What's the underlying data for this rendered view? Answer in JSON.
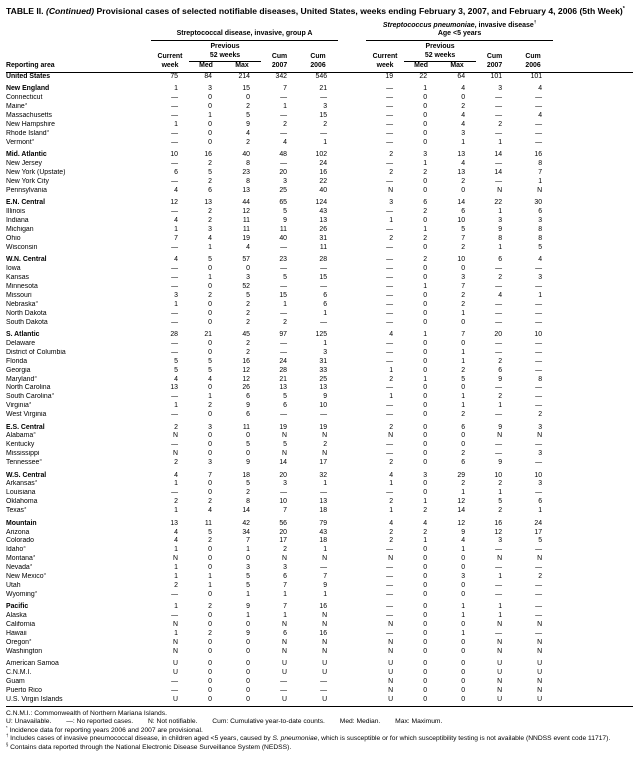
{
  "title": {
    "segments": [
      {
        "text": "TABLE II. "
      },
      {
        "text": "(Continued)",
        "italic": true
      },
      {
        "text": " Provisional cases of selected notifiable diseases, United States, weeks ending February 3, 2007, and February 4, 2006 (5th Week)"
      },
      {
        "text": "*",
        "sup": true
      }
    ]
  },
  "table": {
    "header": {
      "reporting_area_label": "Reporting area",
      "groups": [
        {
          "title_segments": [
            {
              "text": "Streptococcal disease, invasive, group A"
            }
          ],
          "subtitle": ""
        },
        {
          "title_segments": [
            {
              "text": "Streptococcus pneumoniae",
              "italic": true
            },
            {
              "text": ", invasive disease"
            },
            {
              "text": "†",
              "sup": true
            }
          ],
          "subtitle": "Age <5 years"
        }
      ],
      "subcols": {
        "current_l1": "Current",
        "current_l2": "week",
        "previous_l1": "Previous",
        "previous_l2": "52 weeks",
        "med": "Med",
        "max": "Max",
        "cum": "Cum",
        "y2007": "2007",
        "y2006": "2006"
      }
    },
    "rows": [
      {
        "label": "United States",
        "bold": true,
        "values": [
          "75",
          "84",
          "214",
          "342",
          "546",
          "19",
          "22",
          "64",
          "101",
          "101"
        ]
      },
      {
        "label": "New England",
        "bold": true,
        "gap_before": true,
        "values": [
          "1",
          "3",
          "15",
          "7",
          "21",
          "—",
          "1",
          "4",
          "3",
          "4"
        ]
      },
      {
        "label": "Connecticut",
        "values": [
          "—",
          "0",
          "0",
          "—",
          "—",
          "—",
          "0",
          "0",
          "—",
          "—"
        ]
      },
      {
        "label": "Maine",
        "sup": "§",
        "values": [
          "—",
          "0",
          "2",
          "1",
          "3",
          "—",
          "0",
          "2",
          "—",
          "—"
        ]
      },
      {
        "label": "Massachusetts",
        "values": [
          "—",
          "1",
          "5",
          "—",
          "15",
          "—",
          "0",
          "4",
          "—",
          "4"
        ]
      },
      {
        "label": "New Hampshire",
        "values": [
          "1",
          "0",
          "9",
          "2",
          "2",
          "—",
          "0",
          "4",
          "2",
          "—"
        ]
      },
      {
        "label": "Rhode Island",
        "sup": "§",
        "values": [
          "—",
          "0",
          "4",
          "—",
          "—",
          "—",
          "0",
          "3",
          "—",
          "—"
        ]
      },
      {
        "label": "Vermont",
        "sup": "§",
        "values": [
          "—",
          "0",
          "2",
          "4",
          "1",
          "—",
          "0",
          "1",
          "1",
          "—"
        ]
      },
      {
        "label": "Mid. Atlantic",
        "bold": true,
        "gap_before": true,
        "values": [
          "10",
          "16",
          "40",
          "48",
          "102",
          "2",
          "3",
          "13",
          "14",
          "16"
        ]
      },
      {
        "label": "New Jersey",
        "values": [
          "—",
          "2",
          "8",
          "—",
          "24",
          "—",
          "1",
          "4",
          "—",
          "8"
        ]
      },
      {
        "label": "New York (Upstate)",
        "values": [
          "6",
          "5",
          "23",
          "20",
          "16",
          "2",
          "2",
          "13",
          "14",
          "7"
        ]
      },
      {
        "label": "New York City",
        "values": [
          "—",
          "2",
          "8",
          "3",
          "22",
          "—",
          "0",
          "2",
          "—",
          "1"
        ]
      },
      {
        "label": "Pennsylvania",
        "values": [
          "4",
          "6",
          "13",
          "25",
          "40",
          "N",
          "0",
          "0",
          "N",
          "N"
        ]
      },
      {
        "label": "E.N. Central",
        "bold": true,
        "gap_before": true,
        "values": [
          "12",
          "13",
          "44",
          "65",
          "124",
          "3",
          "6",
          "14",
          "22",
          "30"
        ]
      },
      {
        "label": "Illinois",
        "values": [
          "—",
          "2",
          "12",
          "5",
          "43",
          "—",
          "2",
          "6",
          "1",
          "6"
        ]
      },
      {
        "label": "Indiana",
        "values": [
          "4",
          "2",
          "11",
          "9",
          "13",
          "1",
          "0",
          "10",
          "3",
          "3"
        ]
      },
      {
        "label": "Michigan",
        "values": [
          "1",
          "3",
          "11",
          "11",
          "26",
          "—",
          "1",
          "5",
          "9",
          "8"
        ]
      },
      {
        "label": "Ohio",
        "values": [
          "7",
          "4",
          "19",
          "40",
          "31",
          "2",
          "2",
          "7",
          "8",
          "8"
        ]
      },
      {
        "label": "Wisconsin",
        "values": [
          "—",
          "1",
          "4",
          "—",
          "11",
          "—",
          "0",
          "2",
          "1",
          "5"
        ]
      },
      {
        "label": "W.N. Central",
        "bold": true,
        "gap_before": true,
        "values": [
          "4",
          "5",
          "57",
          "23",
          "28",
          "—",
          "2",
          "10",
          "6",
          "4"
        ]
      },
      {
        "label": "Iowa",
        "values": [
          "—",
          "0",
          "0",
          "—",
          "—",
          "—",
          "0",
          "0",
          "—",
          "—"
        ]
      },
      {
        "label": "Kansas",
        "values": [
          "—",
          "1",
          "3",
          "5",
          "15",
          "—",
          "0",
          "3",
          "2",
          "3"
        ]
      },
      {
        "label": "Minnesota",
        "values": [
          "—",
          "0",
          "52",
          "—",
          "—",
          "—",
          "1",
          "7",
          "—",
          "—"
        ]
      },
      {
        "label": "Missouri",
        "values": [
          "3",
          "2",
          "5",
          "15",
          "6",
          "—",
          "0",
          "2",
          "4",
          "1"
        ]
      },
      {
        "label": "Nebraska",
        "sup": "§",
        "values": [
          "1",
          "0",
          "2",
          "1",
          "6",
          "—",
          "0",
          "2",
          "—",
          "—"
        ]
      },
      {
        "label": "North Dakota",
        "values": [
          "—",
          "0",
          "2",
          "—",
          "1",
          "—",
          "0",
          "1",
          "—",
          "—"
        ]
      },
      {
        "label": "South Dakota",
        "values": [
          "—",
          "0",
          "2",
          "2",
          "—",
          "—",
          "0",
          "0",
          "—",
          "—"
        ]
      },
      {
        "label": "S. Atlantic",
        "bold": true,
        "gap_before": true,
        "values": [
          "28",
          "21",
          "45",
          "97",
          "125",
          "4",
          "1",
          "7",
          "20",
          "10"
        ]
      },
      {
        "label": "Delaware",
        "values": [
          "—",
          "0",
          "2",
          "—",
          "1",
          "—",
          "0",
          "0",
          "—",
          "—"
        ]
      },
      {
        "label": "District of Columbia",
        "values": [
          "—",
          "0",
          "2",
          "—",
          "3",
          "—",
          "0",
          "1",
          "—",
          "—"
        ]
      },
      {
        "label": "Florida",
        "values": [
          "5",
          "5",
          "16",
          "24",
          "31",
          "—",
          "0",
          "1",
          "2",
          "—"
        ]
      },
      {
        "label": "Georgia",
        "values": [
          "5",
          "5",
          "12",
          "28",
          "33",
          "1",
          "0",
          "2",
          "6",
          "—"
        ]
      },
      {
        "label": "Maryland",
        "sup": "§",
        "values": [
          "4",
          "4",
          "12",
          "21",
          "25",
          "2",
          "1",
          "5",
          "9",
          "8"
        ]
      },
      {
        "label": "North Carolina",
        "values": [
          "13",
          "0",
          "26",
          "13",
          "13",
          "—",
          "0",
          "0",
          "—",
          "—"
        ]
      },
      {
        "label": "South Carolina",
        "sup": "§",
        "values": [
          "—",
          "1",
          "6",
          "5",
          "9",
          "1",
          "0",
          "1",
          "2",
          "—"
        ]
      },
      {
        "label": "Virginia",
        "sup": "§",
        "values": [
          "1",
          "2",
          "9",
          "6",
          "10",
          "—",
          "0",
          "1",
          "1",
          "—"
        ]
      },
      {
        "label": "West Virginia",
        "values": [
          "—",
          "0",
          "6",
          "—",
          "—",
          "—",
          "0",
          "2",
          "—",
          "2"
        ]
      },
      {
        "label": "E.S. Central",
        "bold": true,
        "gap_before": true,
        "values": [
          "2",
          "3",
          "11",
          "19",
          "19",
          "2",
          "0",
          "6",
          "9",
          "3"
        ]
      },
      {
        "label": "Alabama",
        "sup": "§",
        "values": [
          "N",
          "0",
          "0",
          "N",
          "N",
          "N",
          "0",
          "0",
          "N",
          "N"
        ]
      },
      {
        "label": "Kentucky",
        "values": [
          "—",
          "0",
          "5",
          "5",
          "2",
          "—",
          "0",
          "0",
          "—",
          "—"
        ]
      },
      {
        "label": "Mississippi",
        "values": [
          "N",
          "0",
          "0",
          "N",
          "N",
          "—",
          "0",
          "2",
          "—",
          "3"
        ]
      },
      {
        "label": "Tennessee",
        "sup": "§",
        "values": [
          "2",
          "3",
          "9",
          "14",
          "17",
          "2",
          "0",
          "6",
          "9",
          "—"
        ]
      },
      {
        "label": "W.S. Central",
        "bold": true,
        "gap_before": true,
        "values": [
          "4",
          "7",
          "18",
          "20",
          "32",
          "4",
          "3",
          "29",
          "10",
          "10"
        ]
      },
      {
        "label": "Arkansas",
        "sup": "§",
        "values": [
          "1",
          "0",
          "5",
          "3",
          "1",
          "1",
          "0",
          "2",
          "2",
          "3"
        ]
      },
      {
        "label": "Louisiana",
        "values": [
          "—",
          "0",
          "2",
          "—",
          "—",
          "—",
          "0",
          "1",
          "1",
          "—"
        ]
      },
      {
        "label": "Oklahoma",
        "values": [
          "2",
          "2",
          "8",
          "10",
          "13",
          "2",
          "1",
          "12",
          "5",
          "6"
        ]
      },
      {
        "label": "Texas",
        "sup": "§",
        "values": [
          "1",
          "4",
          "14",
          "7",
          "18",
          "1",
          "2",
          "14",
          "2",
          "1"
        ]
      },
      {
        "label": "Mountain",
        "bold": true,
        "gap_before": true,
        "values": [
          "13",
          "11",
          "42",
          "56",
          "79",
          "4",
          "4",
          "12",
          "16",
          "24"
        ]
      },
      {
        "label": "Arizona",
        "values": [
          "4",
          "5",
          "34",
          "20",
          "43",
          "2",
          "2",
          "9",
          "12",
          "17"
        ]
      },
      {
        "label": "Colorado",
        "values": [
          "4",
          "2",
          "7",
          "17",
          "18",
          "2",
          "1",
          "4",
          "3",
          "5"
        ]
      },
      {
        "label": "Idaho",
        "sup": "§",
        "values": [
          "1",
          "0",
          "1",
          "2",
          "1",
          "—",
          "0",
          "1",
          "—",
          "—"
        ]
      },
      {
        "label": "Montana",
        "sup": "§",
        "values": [
          "N",
          "0",
          "0",
          "N",
          "N",
          "N",
          "0",
          "0",
          "N",
          "N"
        ]
      },
      {
        "label": "Nevada",
        "sup": "§",
        "values": [
          "1",
          "0",
          "3",
          "3",
          "—",
          "—",
          "0",
          "0",
          "—",
          "—"
        ]
      },
      {
        "label": "New Mexico",
        "sup": "§",
        "values": [
          "1",
          "1",
          "5",
          "6",
          "7",
          "—",
          "0",
          "3",
          "1",
          "2"
        ]
      },
      {
        "label": "Utah",
        "values": [
          "2",
          "1",
          "5",
          "7",
          "9",
          "—",
          "0",
          "0",
          "—",
          "—"
        ]
      },
      {
        "label": "Wyoming",
        "sup": "§",
        "values": [
          "—",
          "0",
          "1",
          "1",
          "1",
          "—",
          "0",
          "0",
          "—",
          "—"
        ]
      },
      {
        "label": "Pacific",
        "bold": true,
        "gap_before": true,
        "values": [
          "1",
          "2",
          "9",
          "7",
          "16",
          "—",
          "0",
          "1",
          "1",
          "—"
        ]
      },
      {
        "label": "Alaska",
        "values": [
          "—",
          "0",
          "1",
          "1",
          "N",
          "—",
          "0",
          "1",
          "1",
          "—"
        ]
      },
      {
        "label": "California",
        "values": [
          "N",
          "0",
          "0",
          "N",
          "N",
          "N",
          "0",
          "0",
          "N",
          "N"
        ]
      },
      {
        "label": "Hawaii",
        "values": [
          "1",
          "2",
          "9",
          "6",
          "16",
          "—",
          "0",
          "1",
          "—",
          "—"
        ]
      },
      {
        "label": "Oregon",
        "sup": "§",
        "values": [
          "N",
          "0",
          "0",
          "N",
          "N",
          "N",
          "0",
          "0",
          "N",
          "N"
        ]
      },
      {
        "label": "Washington",
        "values": [
          "N",
          "0",
          "0",
          "N",
          "N",
          "N",
          "0",
          "0",
          "N",
          "N"
        ]
      },
      {
        "label": "American Samoa",
        "gap_before": true,
        "values": [
          "U",
          "0",
          "0",
          "U",
          "U",
          "U",
          "0",
          "0",
          "U",
          "U"
        ]
      },
      {
        "label": "C.N.M.I.",
        "values": [
          "U",
          "0",
          "0",
          "U",
          "U",
          "U",
          "0",
          "0",
          "U",
          "U"
        ]
      },
      {
        "label": "Guam",
        "values": [
          "—",
          "0",
          "0",
          "—",
          "—",
          "N",
          "0",
          "0",
          "N",
          "N"
        ]
      },
      {
        "label": "Puerto Rico",
        "values": [
          "—",
          "0",
          "0",
          "—",
          "—",
          "N",
          "0",
          "0",
          "N",
          "N"
        ]
      },
      {
        "label": "U.S. Virgin Islands",
        "values": [
          "U",
          "0",
          "0",
          "U",
          "U",
          "U",
          "0",
          "0",
          "U",
          "U"
        ]
      }
    ]
  },
  "footnotes": [
    [
      {
        "text": "C.N.M.I.: Commonwealth of Northern Mariana Islands."
      }
    ],
    [
      {
        "text": "U: Unavailable.        —: No reported cases.        N: Not notifiable.        Cum: Cumulative year-to-date counts.        Med: Median.        Max: Maximum."
      }
    ],
    [
      {
        "text": "*",
        "sup": true
      },
      {
        "text": " Incidence data for reporting years 2006 and 2007 are provisional."
      }
    ],
    [
      {
        "text": "†",
        "sup": true
      },
      {
        "text": " Includes cases of invasive pneumococcal disease, in children aged <5 years, caused by "
      },
      {
        "text": "S. pneumoniae",
        "italic": true
      },
      {
        "text": ", which is susceptible or for which susceptibility testing is not available (NNDSS event code 11717)."
      }
    ],
    [
      {
        "text": "§",
        "sup": true
      },
      {
        "text": " Contains data reported through the National Electronic Disease Surveillance System (NEDSS)."
      }
    ]
  ]
}
